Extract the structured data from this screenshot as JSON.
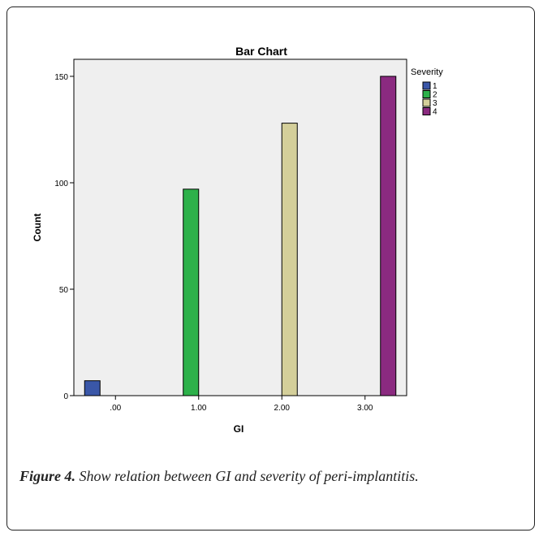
{
  "chart_data": {
    "type": "bar",
    "title": "Bar Chart",
    "xlabel": "GI",
    "ylabel": "Count",
    "categories": [
      ".00",
      "1.00",
      "2.00",
      "3.00"
    ],
    "ylim": [
      0,
      158
    ],
    "yticks": [
      0,
      50,
      100,
      150
    ],
    "grid": false,
    "legend": {
      "title": "Severity",
      "position": "top-right"
    },
    "series": [
      {
        "name": "1",
        "color": "#3a57a8",
        "values": [
          7,
          0,
          0,
          0
        ]
      },
      {
        "name": "2",
        "color": "#2db14a",
        "values": [
          0,
          97,
          0,
          0
        ]
      },
      {
        "name": "3",
        "color": "#d4cf9a",
        "values": [
          0,
          0,
          128,
          0
        ]
      },
      {
        "name": "4",
        "color": "#8b2a80",
        "values": [
          0,
          0,
          0,
          150
        ]
      }
    ],
    "plot_background": "#efefef"
  },
  "caption": {
    "label": "Figure 4.",
    "text": " Show relation between GI and severity of peri-implantitis."
  }
}
